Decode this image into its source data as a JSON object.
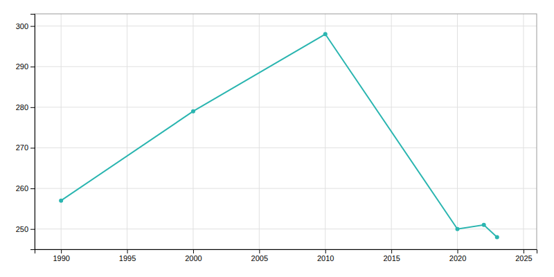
{
  "chart_data": {
    "type": "line",
    "x": [
      1990,
      2000,
      2010,
      2020,
      2022,
      2023
    ],
    "values": [
      257,
      279,
      298,
      250,
      251,
      248
    ],
    "color": "#2ab5b0",
    "marker": "circle",
    "xlim": [
      1988,
      2026
    ],
    "ylim": [
      245,
      303
    ],
    "xticks": [
      1990,
      1995,
      2000,
      2005,
      2010,
      2015,
      2020,
      2025
    ],
    "yticks": [
      250,
      260,
      270,
      280,
      290,
      300
    ],
    "grid": true
  }
}
